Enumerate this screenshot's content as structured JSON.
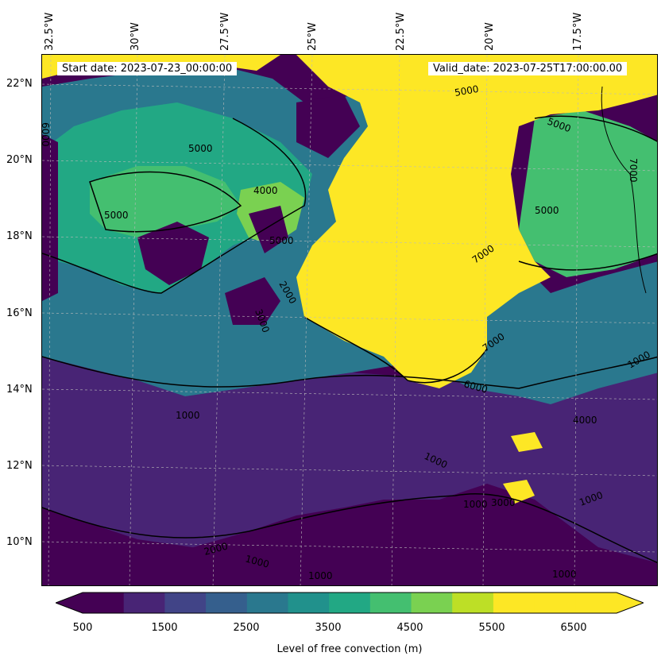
{
  "info": {
    "start_date": "Start date: 2023-07-23_00:00:00",
    "valid_date": "Valid_date: 2023-07-25T17:00:00.00"
  },
  "longitude_labels": [
    "32.5°W",
    "30°W",
    "27.5°W",
    "25°W",
    "22.5°W",
    "20°W",
    "17.5°W"
  ],
  "latitude_labels": [
    "22°N",
    "20°N",
    "18°N",
    "16°N",
    "14°N",
    "12°N",
    "10°N"
  ],
  "contour_labels": [
    "5000",
    "5000",
    "5000",
    "4000",
    "2000",
    "3000",
    "5000",
    "5000",
    "7000",
    "7000",
    "6000",
    "4000",
    "1000",
    "1000",
    "1000",
    "1000",
    "1000",
    "2000",
    "1000",
    "1000",
    "3000",
    "6000",
    "7000",
    "1000",
    "5000"
  ],
  "colorbar": {
    "label": "Level of free convection (m)",
    "tick_labels": [
      "500",
      "1500",
      "2500",
      "3500",
      "4500",
      "5500",
      "6500"
    ],
    "levels": [
      500,
      1000,
      1500,
      2000,
      2500,
      3000,
      3500,
      4000,
      4500,
      5000,
      5500,
      6000,
      6500,
      7000
    ],
    "colors": [
      "#440154",
      "#482475",
      "#414487",
      "#355f8d",
      "#2a788e",
      "#21918c",
      "#22a884",
      "#44bf70",
      "#7ad151",
      "#bddf26",
      "#fde725",
      "#fde725",
      "#fde725"
    ],
    "extend": "both"
  },
  "palette": {
    "low": "#440154",
    "mid_low": "#414487",
    "mid": "#2a788e",
    "mid_high": "#22a884",
    "high": "#7ad151",
    "top": "#fde725"
  }
}
